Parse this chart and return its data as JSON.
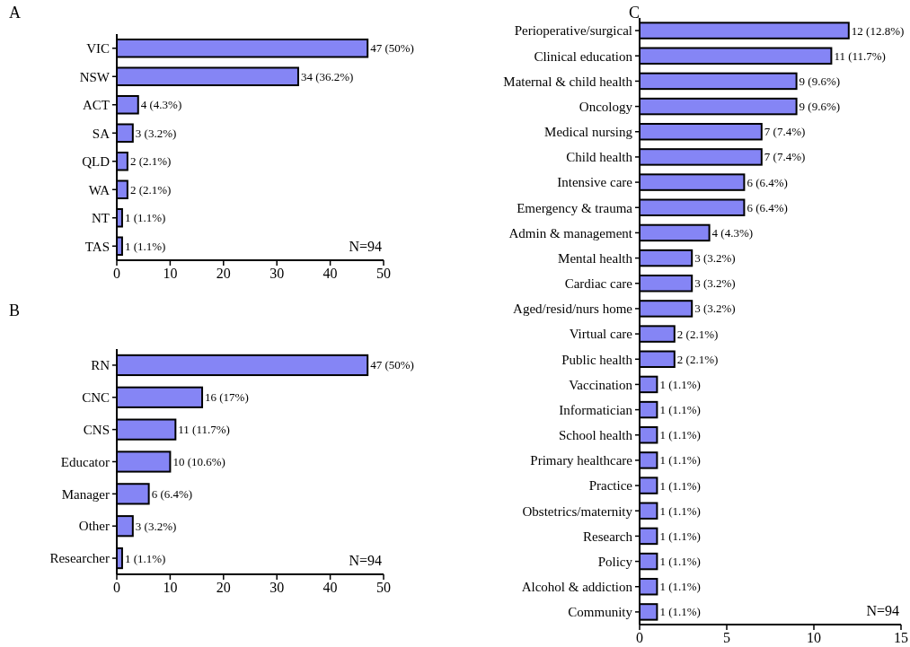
{
  "chart_data": [
    {
      "type": "bar",
      "title": "A",
      "orientation": "horizontal",
      "categories": [
        "VIC",
        "NSW",
        "ACT",
        "SA",
        "QLD",
        "WA",
        "NT",
        "TAS"
      ],
      "values": [
        47,
        34,
        4,
        3,
        2,
        2,
        1,
        1
      ],
      "value_labels": [
        "47 (50%)",
        "34 (36.2%)",
        "4 (4.3%)",
        "3 (3.2%)",
        "2 (2.1%)",
        "2 (2.1%)",
        "1 (1.1%)",
        "1 (1.1%)"
      ],
      "color": "#8585f5",
      "xlim": [
        0,
        50
      ],
      "xticks": [
        0,
        10,
        20,
        30,
        40,
        50
      ],
      "annotations": [
        "N=94"
      ]
    },
    {
      "type": "bar",
      "title": "B",
      "orientation": "horizontal",
      "categories": [
        "RN",
        "CNC",
        "CNS",
        "Educator",
        "Manager",
        "Other",
        "Researcher"
      ],
      "values": [
        47,
        16,
        11,
        10,
        6,
        3,
        1
      ],
      "value_labels": [
        "47 (50%)",
        "16 (17%)",
        "11 (11.7%)",
        "10 (10.6%)",
        "6 (6.4%)",
        "3 (3.2%)",
        "1 (1.1%)"
      ],
      "color": "#8585f5",
      "xlim": [
        0,
        50
      ],
      "xticks": [
        0,
        10,
        20,
        30,
        40,
        50
      ],
      "annotations": [
        "N=94"
      ]
    },
    {
      "type": "bar",
      "title": "C",
      "orientation": "horizontal",
      "categories": [
        "Perioperative/surgical",
        "Clinical education",
        "Maternal & child health",
        "Oncology",
        "Medical nursing",
        "Child health",
        "Intensive care",
        "Emergency & trauma",
        "Admin & management",
        "Mental health",
        "Cardiac care",
        "Aged/resid/nurs home",
        "Virtual care",
        "Public health",
        "Vaccination",
        "Informatician",
        "School health",
        "Primary healthcare",
        "Practice",
        "Obstetrics/maternity",
        "Research",
        "Policy",
        "Alcohol & addiction",
        "Community"
      ],
      "values": [
        12,
        11,
        9,
        9,
        7,
        7,
        6,
        6,
        4,
        3,
        3,
        3,
        2,
        2,
        1,
        1,
        1,
        1,
        1,
        1,
        1,
        1,
        1,
        1
      ],
      "value_labels": [
        "12 (12.8%)",
        "11 (11.7%)",
        "9 (9.6%)",
        "9 (9.6%)",
        "7 (7.4%)",
        "7 (7.4%)",
        "6 (6.4%)",
        "6 (6.4%)",
        "4 (4.3%)",
        "3 (3.2%)",
        "3 (3.2%)",
        "3 (3.2%)",
        "2 (2.1%)",
        "2 (2.1%)",
        "1 (1.1%)",
        "1 (1.1%)",
        "1 (1.1%)",
        "1 (1.1%)",
        "1 (1.1%)",
        "1 (1.1%)",
        "1 (1.1%)",
        "1 (1.1%)",
        "1 (1.1%)",
        "1 (1.1%)"
      ],
      "color": "#8585f5",
      "xlim": [
        0,
        15
      ],
      "xticks": [
        0,
        5,
        10,
        15
      ],
      "annotations": [
        "N=94"
      ]
    }
  ]
}
